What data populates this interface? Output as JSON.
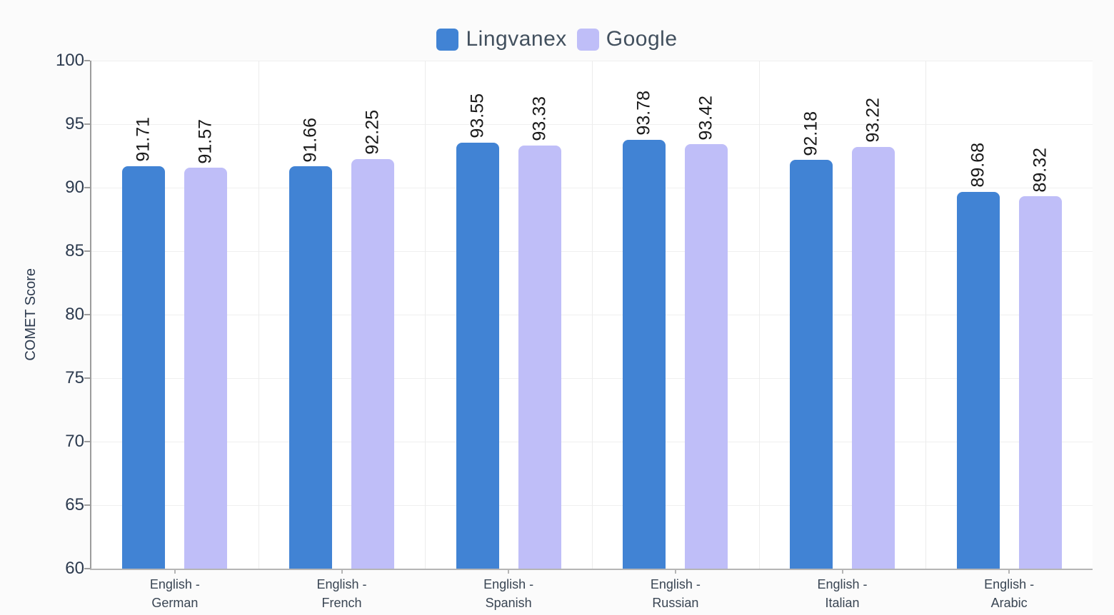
{
  "colors": {
    "lingvanex_blue": "#4183d4",
    "google_lavender": "#bfbef8",
    "background": "#fbfbfb",
    "plot_background": "#ffffff",
    "gridline": "#efefef",
    "axis": "#9d9d9d",
    "tick_label": "#2c3a4e",
    "value_label": "#191919",
    "legend_text": "#42505e"
  },
  "legend": {
    "items": [
      {
        "label": "Lingvanex",
        "color": "#4183d4"
      },
      {
        "label": "Google",
        "color": "#bfbef8"
      }
    ]
  },
  "chart_data": {
    "type": "bar",
    "title": "",
    "ylabel": "COMET Score",
    "xlabel": "",
    "ylim": [
      60,
      100
    ],
    "yticks": [
      60,
      65,
      70,
      75,
      80,
      85,
      90,
      95,
      100
    ],
    "grid": true,
    "legend_position": "top",
    "categories": [
      {
        "line1": "English -",
        "line2": "German"
      },
      {
        "line1": "English -",
        "line2": "French"
      },
      {
        "line1": "English -",
        "line2": "Spanish"
      },
      {
        "line1": "English -",
        "line2": "Russian"
      },
      {
        "line1": "English -",
        "line2": "Italian"
      },
      {
        "line1": "English -",
        "line2": "Arabic"
      }
    ],
    "series": [
      {
        "name": "Lingvanex",
        "color": "#4183d4",
        "values": [
          91.71,
          91.66,
          93.55,
          93.78,
          92.18,
          89.68
        ]
      },
      {
        "name": "Google",
        "color": "#bfbef8",
        "values": [
          91.57,
          92.25,
          93.33,
          93.42,
          93.22,
          89.32
        ]
      }
    ]
  }
}
